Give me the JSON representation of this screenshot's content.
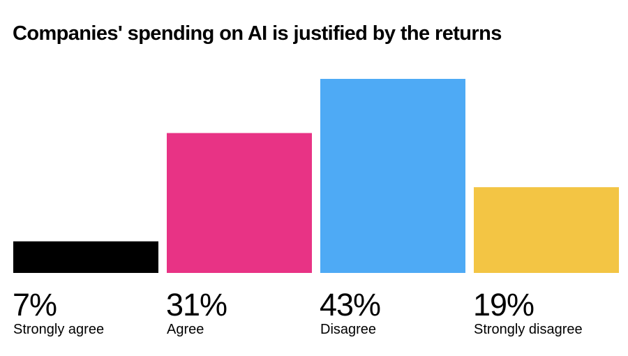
{
  "chart_data": {
    "type": "bar",
    "title": "Companies' spending on AI is justified by the returns",
    "categories": [
      "Strongly agree",
      "Agree",
      "Disagree",
      "Strongly disagree"
    ],
    "values": [
      7,
      31,
      43,
      19
    ],
    "value_labels": [
      "7%",
      "31%",
      "43%",
      "19%"
    ],
    "colors": [
      "#000000",
      "#e83385",
      "#4eaaf5",
      "#f3c544"
    ],
    "xlabel": "",
    "ylabel": "",
    "ylim": [
      0,
      43
    ],
    "grid": false
  }
}
